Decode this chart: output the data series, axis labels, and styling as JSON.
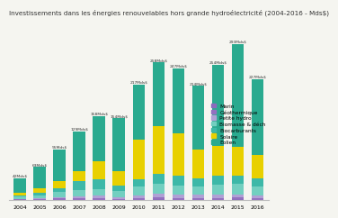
{
  "title": "Investissements dans les énergies renouvelables hors grande hydroélectricité (2004-2016 - Mds$)",
  "years": [
    2004,
    2005,
    2006,
    2007,
    2008,
    2009,
    2010,
    2011,
    2012,
    2013,
    2014,
    2015,
    2016
  ],
  "totals": [
    "42Mds$",
    "63Mds$",
    "95Mds$",
    "129Mds$",
    "158Mds$",
    "154Mds$",
    "217Mds$",
    "258Mds$",
    "247Mds$",
    "214Mds$",
    "254Mds$",
    "293Mds$",
    "227Mds$"
  ],
  "series": {
    "Marin": [
      0.5,
      0.5,
      1,
      1,
      1,
      0.5,
      1,
      2,
      1,
      1,
      1,
      2,
      1
    ],
    "Géothermique": [
      1,
      1,
      2,
      2,
      2,
      2,
      3,
      3,
      3,
      3,
      3,
      3,
      3
    ],
    "Petite hydro": [
      1,
      2,
      3,
      4,
      5,
      3,
      5,
      7,
      7,
      6,
      6,
      6,
      5
    ],
    "Biomasse & déch": [
      4,
      6,
      9,
      11,
      13,
      12,
      16,
      19,
      17,
      15,
      19,
      19,
      17
    ],
    "Biocarburants": [
      3,
      5,
      8,
      18,
      18,
      9,
      14,
      19,
      17,
      15,
      17,
      15,
      14
    ],
    "Solaire": [
      4,
      7,
      12,
      18,
      34,
      28,
      75,
      88,
      80,
      55,
      55,
      55,
      45
    ],
    "Éolien": [
      28,
      41,
      60,
      75,
      85,
      99,
      103,
      120,
      122,
      119,
      153,
      193,
      142
    ]
  },
  "colors": {
    "Marin": "#8b6bbd",
    "Géothermique": "#9370c0",
    "Petite hydro": "#b0a0d5",
    "Biomasse & déch": "#72cfc0",
    "Biocarburants": "#3db8a8",
    "Solaire": "#e8d000",
    "Éolien": "#2aaa8f"
  },
  "background_color": "#f5f5f0",
  "title_fontsize": 5.2,
  "tick_fontsize": 4.5,
  "legend_fontsize": 4.2
}
